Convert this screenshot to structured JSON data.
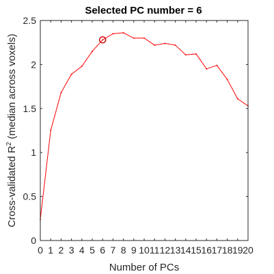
{
  "chart_data": {
    "type": "line",
    "title": "Selected PC number = 6",
    "xlabel": "Number of PCs",
    "ylabel_main": "Cross-validated R",
    "ylabel_sup": "2",
    "ylabel_suffix": " (median across voxels)",
    "xlim": [
      0,
      20
    ],
    "ylim": [
      0,
      2.5
    ],
    "xticks": [
      0,
      1,
      2,
      3,
      4,
      5,
      6,
      7,
      8,
      9,
      10,
      11,
      12,
      13,
      14,
      15,
      16,
      17,
      18,
      19,
      20
    ],
    "xtick_labels": [
      "0",
      "1",
      "2",
      "3",
      "4",
      "5",
      "6",
      "7",
      "8",
      "9",
      "10",
      "11",
      "12",
      "13",
      "14",
      "15",
      "16",
      "17",
      "18",
      "19",
      "20"
    ],
    "yticks": [
      0,
      0.5,
      1,
      1.5,
      2,
      2.5
    ],
    "ytick_labels": [
      "0",
      "0.5",
      "1",
      "1.5",
      "2",
      "2.5"
    ],
    "grid": false,
    "series": [
      {
        "color": "#ff0000",
        "x": [
          0,
          1,
          2,
          3,
          4,
          5,
          6,
          7,
          8,
          9,
          10,
          11,
          12,
          13,
          14,
          15,
          16,
          17,
          18,
          19,
          20
        ],
        "y": [
          0.24,
          1.25,
          1.68,
          1.89,
          1.98,
          2.15,
          2.28,
          2.35,
          2.36,
          2.3,
          2.3,
          2.22,
          2.24,
          2.22,
          2.11,
          2.12,
          1.95,
          1.99,
          1.83,
          1.61,
          1.53
        ]
      }
    ],
    "selected": {
      "x": 6,
      "y": 2.28,
      "color": "#d00000"
    }
  }
}
